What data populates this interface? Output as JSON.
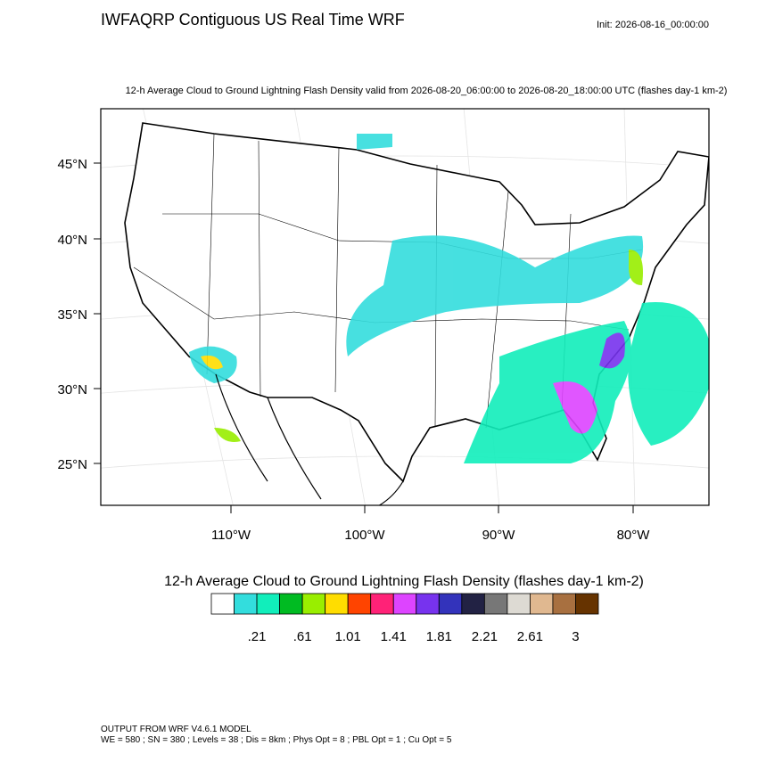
{
  "header": {
    "title": "IWFAQRP Contiguous US Real Time WRF",
    "init": "Init: 2026-08-16_00:00:00"
  },
  "map": {
    "subtitle": "12-h Average Cloud to Ground Lightning Flash Density valid from 2026-08-20_06:00:00 to 2026-08-20_18:00:00 UTC   (flashes day-1 km-2)",
    "lat_labels": [
      "45°N",
      "40°N",
      "35°N",
      "30°N",
      "25°N"
    ],
    "lon_labels": [
      "110°W",
      "100°W",
      "90°W",
      "80°W"
    ]
  },
  "colorbar": {
    "title": "12-h Average Cloud to Ground Lightning Flash Density  (flashes day-1 km-2)",
    "colors": [
      "#ffffff",
      "#33dddd",
      "#11eebb",
      "#00bb22",
      "#99ee00",
      "#ffdd00",
      "#ff4400",
      "#ff2277",
      "#dd44ff",
      "#7733ee",
      "#3333bb",
      "#222244",
      "#777777",
      "#dddad3",
      "#e0b890",
      "#a87040",
      "#663300"
    ],
    "labels": [
      ".21",
      ".61",
      "1.01",
      "1.41",
      "1.81",
      "2.21",
      "2.61",
      "3"
    ]
  },
  "footer": {
    "lines": [
      "OUTPUT FROM WRF V4.6.1 MODEL",
      "WE = 580 ; SN = 380 ; Levels = 38 ; Dis = 8km ; Phys Opt = 8 ; PBL Opt = 1 ; Cu Opt = 5"
    ]
  }
}
